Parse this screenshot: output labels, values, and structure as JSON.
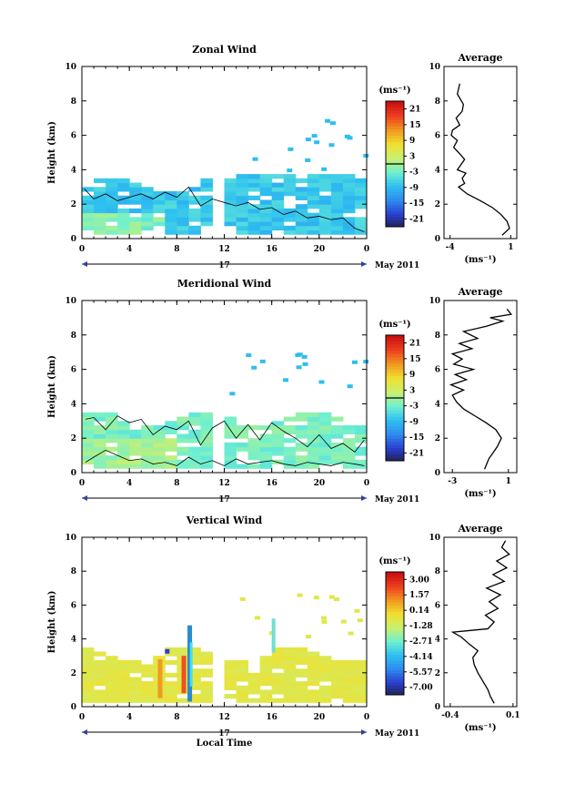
{
  "chart_data": [
    {
      "type": "heatmap",
      "title": "Zonal Wind",
      "ylabel": "Height (km)",
      "xlabel": "",
      "x_ticks": [
        "0",
        "4",
        "8",
        "12",
        "16",
        "20",
        "0"
      ],
      "y_ticks": [
        "0",
        "2",
        "4",
        "6",
        "8",
        "10"
      ],
      "xlim": [
        0,
        24
      ],
      "ylim": [
        0,
        10
      ],
      "day_label": "17",
      "month_label": "May 2011",
      "colorbar": {
        "unit": "(ms⁻¹)",
        "ticks": [
          "21",
          "15",
          "9",
          "3",
          "-3",
          "-9",
          "-15",
          "-21"
        ],
        "range": [
          -24,
          24
        ]
      },
      "contours": [
        {
          "x": [
            0.2,
            1.0,
            2.0,
            3.0,
            4.0,
            5.0,
            6.0,
            7.0,
            8.0,
            9.0,
            10.0,
            11.0,
            12.0,
            13.0,
            14.0,
            15.0,
            16.0,
            17.0,
            18.0,
            19.0,
            20.0,
            21.0,
            22.0,
            23.0,
            23.8
          ],
          "y": [
            2.9,
            2.3,
            2.6,
            2.2,
            2.4,
            2.6,
            2.3,
            2.7,
            2.4,
            3.0,
            1.9,
            2.3,
            2.1,
            1.9,
            2.1,
            1.7,
            1.8,
            1.4,
            1.6,
            1.2,
            1.3,
            1.1,
            1.2,
            0.6,
            0.4
          ]
        }
      ],
      "profile": {
        "title": "Average",
        "xlabel": "(ms⁻¹)",
        "x_ticks": [
          "-4",
          "1"
        ],
        "xlim": [
          -4.5,
          1.5
        ],
        "ylim": [
          0,
          10
        ],
        "y_ticks": [
          "0",
          "2",
          "4",
          "6",
          "8",
          "10"
        ],
        "x": [
          0.3,
          0.9,
          0.7,
          0.2,
          -0.5,
          -1.5,
          -2.6,
          -3.3,
          -2.8,
          -3.0,
          -2.7,
          -3.4,
          -3.1,
          -2.8,
          -3.3,
          -3.7,
          -3.4,
          -3.9,
          -3.8,
          -3.2,
          -3.5,
          -3.0,
          -2.9,
          -3.4,
          -3.2
        ],
        "y": [
          0.2,
          0.6,
          1.0,
          1.4,
          1.8,
          2.2,
          2.6,
          3.0,
          3.2,
          3.5,
          3.8,
          4.0,
          4.3,
          4.6,
          5.0,
          5.3,
          5.7,
          6.0,
          6.3,
          6.6,
          7.0,
          7.4,
          7.8,
          8.4,
          9.0
        ]
      }
    },
    {
      "type": "heatmap",
      "title": "Meridional Wind",
      "ylabel": "Height (km)",
      "xlabel": "",
      "x_ticks": [
        "0",
        "4",
        "8",
        "12",
        "16",
        "20",
        "0"
      ],
      "y_ticks": [
        "0",
        "2",
        "4",
        "6",
        "8",
        "10"
      ],
      "xlim": [
        0,
        24
      ],
      "ylim": [
        0,
        10
      ],
      "day_label": "17",
      "month_label": "May 2011",
      "colorbar": {
        "unit": "(ms⁻¹)",
        "ticks": [
          "21",
          "15",
          "9",
          "3",
          "-3",
          "-9",
          "-15",
          "-21"
        ],
        "range": [
          -24,
          24
        ]
      },
      "contours": [
        {
          "x": [
            0.3,
            1.0,
            2.0,
            3.0,
            4.0,
            5.0,
            6.0,
            7.0,
            8.0,
            9.0,
            10.0,
            11.0,
            12.0,
            13.0,
            14.0,
            15.0,
            16.0,
            17.0,
            18.0,
            19.0,
            20.0,
            21.0,
            22.0,
            23.0,
            23.8
          ],
          "y": [
            3.1,
            3.2,
            2.5,
            3.3,
            2.9,
            3.1,
            2.2,
            2.7,
            2.5,
            3.0,
            1.6,
            2.6,
            3.0,
            2.0,
            2.8,
            1.9,
            2.9,
            2.4,
            2.0,
            1.5,
            2.2,
            1.4,
            1.7,
            1.2,
            1.9
          ]
        },
        {
          "x": [
            0.3,
            1.0,
            2.0,
            3.0,
            4.0,
            5.0,
            6.0,
            7.0,
            8.0,
            9.0,
            10.0,
            11.0,
            12.0,
            13.0,
            14.0,
            15.0,
            16.0,
            17.0,
            18.0,
            19.0,
            20.0,
            21.0,
            22.0,
            23.0,
            23.8
          ],
          "y": [
            0.6,
            0.9,
            1.3,
            1.0,
            0.7,
            0.8,
            0.5,
            0.6,
            0.4,
            0.9,
            0.5,
            0.7,
            0.4,
            0.8,
            0.5,
            0.6,
            0.7,
            0.5,
            0.4,
            0.6,
            0.5,
            0.4,
            0.6,
            0.5,
            0.4
          ]
        }
      ],
      "profile": {
        "title": "Average",
        "xlabel": "(ms⁻¹)",
        "x_ticks": [
          "-3",
          "1"
        ],
        "xlim": [
          -3.6,
          1.6
        ],
        "ylim": [
          0,
          10
        ],
        "y_ticks": [
          "0",
          "2",
          "4",
          "6",
          "8",
          "10"
        ],
        "x": [
          -0.7,
          -0.4,
          0.2,
          0.5,
          0.1,
          -0.6,
          -1.4,
          -2.2,
          -2.7,
          -3.0,
          -2.2,
          -3.1,
          -2.0,
          -2.8,
          -1.5,
          -2.9,
          -2.3,
          -3.0,
          -1.6,
          -2.5,
          -1.2,
          -2.2,
          -0.6,
          0.6,
          -0.3,
          1.2,
          0.9
        ],
        "y": [
          0.2,
          0.8,
          1.5,
          2.0,
          2.5,
          2.9,
          3.3,
          3.7,
          4.1,
          4.5,
          4.8,
          5.1,
          5.4,
          5.7,
          6.0,
          6.3,
          6.6,
          6.9,
          7.2,
          7.5,
          7.8,
          8.2,
          8.5,
          8.8,
          9.0,
          9.2,
          9.5
        ]
      }
    },
    {
      "type": "heatmap",
      "title": "Vertical Wind",
      "ylabel": "Height (km)",
      "xlabel": "Local Time",
      "x_ticks": [
        "0",
        "4",
        "8",
        "12",
        "16",
        "20",
        "0"
      ],
      "y_ticks": [
        "0",
        "2",
        "4",
        "6",
        "8",
        "10"
      ],
      "xlim": [
        0,
        24
      ],
      "ylim": [
        0,
        10
      ],
      "day_label": "17",
      "month_label": "May 2011",
      "colorbar": {
        "unit": "(ms⁻¹)",
        "ticks": [
          "3.00",
          "1.57",
          "0.14",
          "-1.28",
          "-2.71",
          "-4.14",
          "-5.57",
          "-7.00"
        ],
        "range": [
          -7.7,
          3.7
        ]
      },
      "contours": [],
      "profile": {
        "title": "Average",
        "xlabel": "(ms⁻¹)",
        "x_ticks": [
          "-0.4",
          "0.1"
        ],
        "xlim": [
          -0.45,
          0.13
        ],
        "ylim": [
          0,
          10
        ],
        "y_ticks": [
          "0",
          "2",
          "4",
          "6",
          "8",
          "10"
        ],
        "x": [
          -0.05,
          -0.08,
          -0.1,
          -0.14,
          -0.18,
          -0.21,
          -0.22,
          -0.18,
          -0.25,
          -0.31,
          -0.38,
          -0.1,
          -0.05,
          -0.12,
          -0.02,
          -0.09,
          0.0,
          -0.11,
          0.03,
          -0.06,
          0.05,
          -0.03,
          0.07,
          0.01,
          0.04
        ],
        "y": [
          0.2,
          0.6,
          1.0,
          1.5,
          2.0,
          2.5,
          2.9,
          3.3,
          3.7,
          4.1,
          4.4,
          4.6,
          5.0,
          5.4,
          5.8,
          6.2,
          6.6,
          7.0,
          7.4,
          7.8,
          8.2,
          8.6,
          9.0,
          9.4,
          9.8
        ]
      }
    }
  ],
  "colors": {
    "wind_scale": [
      "#20204a",
      "#2a3fd0",
      "#2f8cf0",
      "#2ec0f0",
      "#70f0d0",
      "#c8f070",
      "#f0e030",
      "#f09a20",
      "#f04020",
      "#c81010"
    ]
  }
}
